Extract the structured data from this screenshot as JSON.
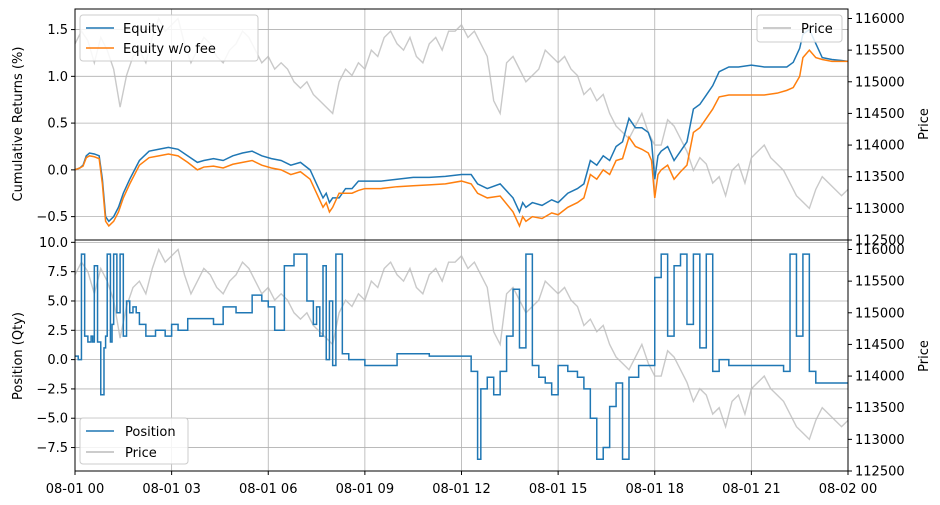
{
  "chart_data": [
    {
      "type": "line",
      "ylabel": "Cumulative Returns (%)",
      "y2label": "Price",
      "ylim": [
        -0.75,
        1.72
      ],
      "y2lim": [
        112500,
        116150
      ],
      "xlim": [
        0,
        24
      ],
      "yticks": [
        "−0.5",
        "0.0",
        "0.5",
        "1.0",
        "1.5"
      ],
      "yticks_values": [
        -0.5,
        0.0,
        0.5,
        1.0,
        1.5
      ],
      "y2ticks": [
        "112500",
        "113000",
        "113500",
        "114000",
        "114500",
        "115000",
        "115500",
        "116000"
      ],
      "y2ticks_values": [
        112500,
        113000,
        113500,
        114000,
        114500,
        115000,
        115500,
        116000
      ],
      "grid": true,
      "legend": {
        "placement": "top-left",
        "entries": [
          "Equity",
          "Equity w/o fee"
        ]
      },
      "legend2": {
        "placement": "top-right",
        "entries": [
          "Price"
        ]
      },
      "series": [
        {
          "name": "Equity",
          "color": "#1f77b4",
          "x": [
            0,
            0.15,
            0.25,
            0.35,
            0.45,
            0.6,
            0.75,
            0.85,
            0.95,
            1.05,
            1.2,
            1.35,
            1.5,
            1.7,
            2.0,
            2.3,
            2.6,
            2.9,
            3.2,
            3.5,
            3.8,
            4.0,
            4.3,
            4.6,
            4.9,
            5.2,
            5.5,
            5.8,
            6.1,
            6.4,
            6.7,
            7.0,
            7.3,
            7.5,
            7.7,
            7.8,
            7.9,
            8.0,
            8.2,
            8.4,
            8.6,
            8.8,
            9.0,
            9.5,
            10.0,
            10.5,
            11.0,
            11.5,
            12.0,
            12.3,
            12.5,
            12.8,
            13.2,
            13.6,
            13.8,
            13.9,
            14.0,
            14.2,
            14.5,
            14.8,
            15.0,
            15.3,
            15.6,
            15.8,
            16.0,
            16.2,
            16.4,
            16.6,
            16.8,
            17.0,
            17.2,
            17.4,
            17.6,
            17.8,
            17.9,
            18.0,
            18.1,
            18.2,
            18.4,
            18.6,
            18.8,
            19.0,
            19.2,
            19.4,
            19.6,
            19.8,
            20.0,
            20.3,
            20.6,
            21.0,
            21.4,
            21.8,
            22.1,
            22.3,
            22.5,
            22.6,
            22.8,
            23.0,
            23.2,
            23.5,
            23.8,
            24.0
          ],
          "values": [
            0.0,
            0.02,
            0.05,
            0.15,
            0.18,
            0.17,
            0.15,
            -0.1,
            -0.5,
            -0.55,
            -0.5,
            -0.4,
            -0.25,
            -0.1,
            0.1,
            0.2,
            0.22,
            0.24,
            0.22,
            0.15,
            0.08,
            0.1,
            0.12,
            0.1,
            0.15,
            0.18,
            0.2,
            0.15,
            0.12,
            0.1,
            0.05,
            0.08,
            0.0,
            -0.15,
            -0.3,
            -0.25,
            -0.35,
            -0.3,
            -0.3,
            -0.2,
            -0.2,
            -0.12,
            -0.12,
            -0.12,
            -0.1,
            -0.08,
            -0.08,
            -0.07,
            -0.05,
            -0.05,
            -0.15,
            -0.2,
            -0.15,
            -0.3,
            -0.45,
            -0.35,
            -0.4,
            -0.35,
            -0.38,
            -0.32,
            -0.35,
            -0.25,
            -0.2,
            -0.15,
            0.1,
            0.05,
            0.15,
            0.1,
            0.25,
            0.3,
            0.55,
            0.45,
            0.45,
            0.4,
            0.3,
            -0.1,
            0.15,
            0.2,
            0.25,
            0.1,
            0.2,
            0.3,
            0.65,
            0.7,
            0.8,
            0.9,
            1.05,
            1.1,
            1.1,
            1.12,
            1.1,
            1.1,
            1.1,
            1.15,
            1.3,
            1.45,
            1.5,
            1.35,
            1.2,
            1.18,
            1.17,
            1.16
          ]
        },
        {
          "name": "Equity w/o fee",
          "color": "#ff7f0e",
          "x": [
            0,
            0.15,
            0.25,
            0.35,
            0.45,
            0.6,
            0.75,
            0.85,
            0.95,
            1.05,
            1.2,
            1.35,
            1.5,
            1.7,
            2.0,
            2.3,
            2.6,
            2.9,
            3.2,
            3.5,
            3.8,
            4.0,
            4.3,
            4.6,
            4.9,
            5.2,
            5.5,
            5.8,
            6.1,
            6.4,
            6.7,
            7.0,
            7.3,
            7.5,
            7.7,
            7.8,
            7.9,
            8.0,
            8.2,
            8.4,
            8.6,
            8.8,
            9.0,
            9.5,
            10.0,
            10.5,
            11.0,
            11.5,
            12.0,
            12.3,
            12.5,
            12.8,
            13.2,
            13.6,
            13.8,
            13.9,
            14.0,
            14.2,
            14.5,
            14.8,
            15.0,
            15.3,
            15.6,
            15.8,
            16.0,
            16.2,
            16.4,
            16.6,
            16.8,
            17.0,
            17.2,
            17.4,
            17.6,
            17.8,
            17.9,
            18.0,
            18.1,
            18.2,
            18.4,
            18.6,
            18.8,
            19.0,
            19.2,
            19.4,
            19.6,
            19.8,
            20.0,
            20.3,
            20.6,
            21.0,
            21.4,
            21.8,
            22.1,
            22.3,
            22.5,
            22.6,
            22.8,
            23.0,
            23.2,
            23.5,
            23.8,
            24.0
          ],
          "values": [
            0.0,
            0.02,
            0.04,
            0.13,
            0.15,
            0.14,
            0.12,
            -0.15,
            -0.55,
            -0.6,
            -0.55,
            -0.45,
            -0.3,
            -0.15,
            0.05,
            0.13,
            0.15,
            0.17,
            0.15,
            0.08,
            0.0,
            0.03,
            0.04,
            0.02,
            0.06,
            0.08,
            0.1,
            0.05,
            0.02,
            0.0,
            -0.05,
            -0.02,
            -0.1,
            -0.25,
            -0.4,
            -0.35,
            -0.45,
            -0.4,
            -0.25,
            -0.25,
            -0.25,
            -0.22,
            -0.2,
            -0.2,
            -0.18,
            -0.17,
            -0.16,
            -0.15,
            -0.12,
            -0.15,
            -0.25,
            -0.3,
            -0.28,
            -0.45,
            -0.6,
            -0.5,
            -0.55,
            -0.5,
            -0.52,
            -0.46,
            -0.48,
            -0.4,
            -0.35,
            -0.3,
            -0.05,
            -0.1,
            0.0,
            -0.05,
            0.1,
            0.12,
            0.35,
            0.25,
            0.22,
            0.18,
            0.1,
            -0.3,
            -0.05,
            0.0,
            0.05,
            -0.1,
            -0.02,
            0.05,
            0.4,
            0.45,
            0.55,
            0.65,
            0.78,
            0.8,
            0.8,
            0.8,
            0.8,
            0.82,
            0.85,
            0.88,
            1.0,
            1.2,
            1.28,
            1.2,
            1.18,
            1.16,
            1.16,
            1.16
          ]
        },
        {
          "name": "Price",
          "color": "#bbbbbb",
          "axis": "right",
          "x": [
            0,
            0.2,
            0.4,
            0.6,
            0.8,
            1.0,
            1.2,
            1.4,
            1.6,
            1.8,
            2.0,
            2.2,
            2.4,
            2.6,
            2.8,
            3.0,
            3.2,
            3.4,
            3.6,
            3.8,
            4.0,
            4.2,
            4.4,
            4.6,
            4.8,
            5.0,
            5.2,
            5.4,
            5.6,
            5.8,
            6.0,
            6.2,
            6.4,
            6.6,
            6.8,
            7.0,
            7.2,
            7.4,
            7.6,
            7.8,
            8.0,
            8.2,
            8.4,
            8.6,
            8.8,
            9.0,
            9.2,
            9.4,
            9.6,
            9.8,
            10.0,
            10.2,
            10.4,
            10.6,
            10.8,
            11.0,
            11.2,
            11.4,
            11.6,
            11.8,
            12.0,
            12.2,
            12.4,
            12.6,
            12.8,
            13.0,
            13.2,
            13.4,
            13.6,
            13.8,
            14.0,
            14.2,
            14.4,
            14.6,
            14.8,
            15.0,
            15.2,
            15.4,
            15.6,
            15.8,
            16.0,
            16.2,
            16.4,
            16.6,
            16.8,
            17.0,
            17.2,
            17.4,
            17.6,
            17.8,
            18.0,
            18.2,
            18.4,
            18.6,
            18.8,
            19.0,
            19.2,
            19.4,
            19.6,
            19.8,
            20.0,
            20.2,
            20.4,
            20.6,
            20.8,
            21.0,
            21.2,
            21.4,
            21.6,
            21.8,
            22.0,
            22.2,
            22.4,
            22.6,
            22.8,
            23.0,
            23.2,
            23.4,
            23.6,
            23.8,
            24.0
          ],
          "values": [
            115600,
            115800,
            115650,
            115300,
            115700,
            115500,
            115200,
            114600,
            115100,
            115400,
            115500,
            115300,
            115700,
            116000,
            115800,
            115900,
            116000,
            115600,
            115300,
            115500,
            115700,
            115600,
            115400,
            115300,
            115500,
            115600,
            115800,
            115700,
            115500,
            115300,
            115400,
            115200,
            115300,
            115200,
            115000,
            114900,
            115000,
            114800,
            114700,
            114600,
            114500,
            115000,
            115200,
            115100,
            115300,
            115200,
            115500,
            115400,
            115700,
            115800,
            115600,
            115500,
            115700,
            115400,
            115300,
            115600,
            115700,
            115500,
            115800,
            115800,
            115900,
            115700,
            115800,
            115600,
            115400,
            114700,
            114500,
            115300,
            115400,
            115200,
            115000,
            115100,
            115200,
            115500,
            115400,
            115300,
            115400,
            115200,
            115100,
            114800,
            114900,
            114700,
            114800,
            114500,
            114300,
            114200,
            114100,
            114300,
            114500,
            114200,
            114000,
            114000,
            114400,
            114300,
            114100,
            113900,
            113600,
            113800,
            113700,
            113400,
            113500,
            113200,
            113600,
            113700,
            113400,
            113800,
            113900,
            114000,
            113800,
            113700,
            113600,
            113400,
            113200,
            113100,
            113000,
            113300,
            113500,
            113400,
            113300,
            113200,
            113300
          ]
        }
      ]
    },
    {
      "type": "line",
      "ylabel": "Position (Qty)",
      "y2label": "Price",
      "ylim": [
        -9.5,
        10.2
      ],
      "y2lim": [
        112500,
        116150
      ],
      "xlim": [
        0,
        24
      ],
      "yticks": [
        "−7.5",
        "−5.0",
        "−2.5",
        "0.0",
        "2.5",
        "5.0",
        "7.5",
        "10.0"
      ],
      "yticks_values": [
        -7.5,
        -5.0,
        -2.5,
        0.0,
        2.5,
        5.0,
        7.5,
        10.0
      ],
      "y2ticks": [
        "112500",
        "113000",
        "113500",
        "114000",
        "114500",
        "115000",
        "115500",
        "116000"
      ],
      "y2ticks_values": [
        112500,
        113000,
        113500,
        114000,
        114500,
        115000,
        115500,
        116000
      ],
      "xticks": [
        "08-01 00",
        "08-01 03",
        "08-01 06",
        "08-01 09",
        "08-01 12",
        "08-01 15",
        "08-01 18",
        "08-01 21",
        "08-02 00"
      ],
      "xticks_values": [
        0,
        3,
        6,
        9,
        12,
        15,
        18,
        21,
        24
      ],
      "grid": true,
      "legend": {
        "placement": "bottom-left",
        "entries": [
          "Position",
          "Price"
        ]
      },
      "series": [
        {
          "name": "Position",
          "color": "#1f77b4",
          "x": [
            0,
            0.1,
            0.2,
            0.3,
            0.4,
            0.5,
            0.55,
            0.6,
            0.7,
            0.8,
            0.9,
            0.95,
            1.0,
            1.1,
            1.15,
            1.2,
            1.3,
            1.4,
            1.5,
            1.6,
            1.7,
            1.8,
            1.9,
            2.0,
            2.2,
            2.5,
            2.8,
            3.0,
            3.2,
            3.5,
            3.8,
            4.0,
            4.3,
            4.6,
            5.0,
            5.5,
            5.8,
            6.0,
            6.2,
            6.5,
            6.8,
            7.0,
            7.2,
            7.4,
            7.5,
            7.6,
            7.7,
            7.8,
            7.9,
            8.0,
            8.1,
            8.3,
            8.5,
            8.7,
            9.0,
            9.5,
            10.0,
            10.5,
            11.0,
            11.5,
            12.0,
            12.3,
            12.5,
            12.6,
            12.8,
            13.0,
            13.2,
            13.4,
            13.6,
            13.8,
            14.0,
            14.2,
            14.4,
            14.6,
            14.8,
            15.0,
            15.3,
            15.6,
            15.8,
            16.0,
            16.2,
            16.4,
            16.6,
            16.8,
            17.0,
            17.2,
            17.5,
            17.8,
            18.0,
            18.2,
            18.4,
            18.6,
            18.8,
            19.0,
            19.2,
            19.4,
            19.6,
            19.8,
            20.0,
            20.3,
            20.6,
            21.0,
            21.4,
            21.8,
            22.0,
            22.2,
            22.4,
            22.6,
            22.8,
            23.0,
            23.2,
            23.5,
            23.8,
            24.0
          ],
          "values": [
            0.3,
            0.0,
            9.0,
            2.0,
            1.5,
            2.0,
            1.5,
            8.0,
            1.5,
            -3.0,
            1.0,
            2.0,
            9.0,
            1.5,
            3.0,
            9.0,
            4.0,
            9.0,
            2.0,
            5.0,
            4.0,
            4.5,
            4.0,
            3.0,
            2.0,
            2.5,
            2.0,
            3.0,
            2.5,
            3.5,
            3.5,
            3.5,
            3.0,
            4.5,
            4.0,
            5.5,
            5.0,
            4.5,
            2.5,
            8.0,
            9.0,
            9.0,
            5.0,
            3.0,
            4.5,
            2.0,
            8.0,
            0.0,
            5.0,
            -0.5,
            9.0,
            0.5,
            0.0,
            0.0,
            -0.5,
            -0.5,
            0.5,
            0.5,
            0.3,
            0.3,
            0.3,
            -1.0,
            -8.5,
            -2.5,
            -1.5,
            -3.0,
            -1.0,
            2.0,
            6.0,
            1.0,
            9.0,
            -0.5,
            -1.5,
            -2.0,
            -3.0,
            -0.5,
            -1.0,
            -1.5,
            -2.5,
            -5.0,
            -8.5,
            -7.5,
            -4.0,
            -2.0,
            -8.5,
            -1.5,
            -0.5,
            -0.5,
            7.0,
            9.0,
            2.0,
            8.0,
            9.0,
            3.0,
            9.0,
            1.0,
            9.0,
            -1.0,
            0.0,
            -0.5,
            -0.5,
            -0.5,
            -0.5,
            -0.5,
            -1.0,
            9.0,
            2.0,
            9.0,
            -1.0,
            -2.0,
            -2.0,
            -2.0,
            -2.0,
            -2.0
          ]
        }
      ]
    }
  ]
}
